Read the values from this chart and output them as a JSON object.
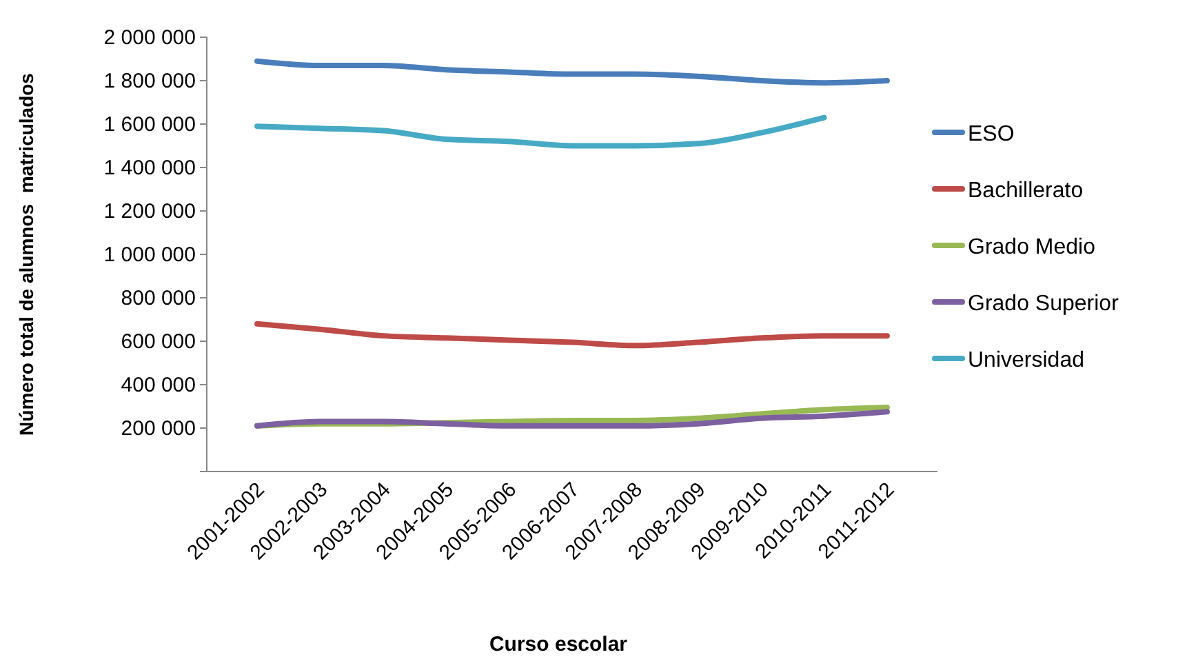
{
  "chart_data": {
    "type": "line",
    "xlabel": "Curso escolar",
    "ylabel": "Número total de alumnos  matriculados",
    "categories": [
      "2001-2002",
      "2002-2003",
      "2003-2004",
      "2004-2005",
      "2005-2006",
      "2006-2007",
      "2007-2008",
      "2008-2009",
      "2009-2010",
      "2010-2011",
      "2011-2012"
    ],
    "series": [
      {
        "name": "ESO",
        "color": "#4a7ebb",
        "values": [
          1890000,
          1870000,
          1870000,
          1850000,
          1840000,
          1830000,
          1830000,
          1820000,
          1800000,
          1790000,
          1800000
        ]
      },
      {
        "name": "Bachillerato",
        "color": "#be4b48",
        "values": [
          680000,
          655000,
          625000,
          615000,
          605000,
          595000,
          580000,
          595000,
          615000,
          625000,
          625000
        ]
      },
      {
        "name": "Grado Medio",
        "color": "#98b954",
        "values": [
          210000,
          220000,
          220000,
          225000,
          230000,
          235000,
          235000,
          245000,
          265000,
          285000,
          295000
        ]
      },
      {
        "name": "Grado Superior",
        "color": "#7d60a0",
        "values": [
          210000,
          230000,
          230000,
          220000,
          210000,
          210000,
          210000,
          220000,
          245000,
          255000,
          275000
        ]
      },
      {
        "name": "Universidad",
        "color": "#46aac5",
        "values": [
          1590000,
          1580000,
          1570000,
          1530000,
          1520000,
          1500000,
          1500000,
          1510000,
          1560000,
          1630000,
          null
        ]
      }
    ],
    "ylim": [
      0,
      2000000
    ],
    "yticks": [
      {
        "value": 0,
        "label": null
      },
      {
        "value": 200000,
        "label": "200 000"
      },
      {
        "value": 400000,
        "label": "400 000"
      },
      {
        "value": 600000,
        "label": "600 000"
      },
      {
        "value": 800000,
        "label": "800 000"
      },
      {
        "value": 1000000,
        "label": "1 000 000"
      },
      {
        "value": 1200000,
        "label": "1 200 000"
      },
      {
        "value": 1400000,
        "label": "1 400 000"
      },
      {
        "value": 1600000,
        "label": "1 600 000"
      },
      {
        "value": 1800000,
        "label": "1 800 000"
      },
      {
        "value": 2000000,
        "label": "2 000 000"
      }
    ],
    "grid": false,
    "legend": "right",
    "marker": "none",
    "line_style": "solid"
  }
}
